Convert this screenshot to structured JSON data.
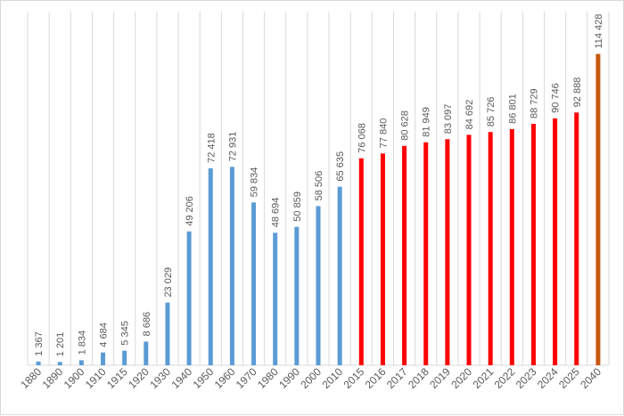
{
  "chart_data": {
    "type": "bar",
    "categories": [
      "1880",
      "1890",
      "1900",
      "1910",
      "1915",
      "1920",
      "1930",
      "1940",
      "1950",
      "1960",
      "1970",
      "1980",
      "1990",
      "2000",
      "2010",
      "2015",
      "2016",
      "2017",
      "2018",
      "2019",
      "2020",
      "2021",
      "2022",
      "2023",
      "2024",
      "2025",
      "2040"
    ],
    "values": [
      1367,
      1201,
      1834,
      4684,
      5345,
      8686,
      23029,
      49206,
      72418,
      72931,
      59834,
      48694,
      50859,
      58506,
      65635,
      76068,
      77840,
      80628,
      81949,
      83097,
      84692,
      85726,
      86801,
      88729,
      90746,
      92888,
      114428
    ],
    "data_labels": [
      "1 367",
      "1 201",
      "1 834",
      "4 684",
      "5 345",
      "8 686",
      "23 029",
      "49 206",
      "72 418",
      "72 931",
      "59 834",
      "48 694",
      "50 859",
      "58 506",
      "65 635",
      "76 068",
      "77 840",
      "80 628",
      "81 949",
      "83 097",
      "84 692",
      "85 726",
      "86 801",
      "88 729",
      "90 746",
      "92 888",
      "114 428"
    ],
    "bar_colors": [
      "#5b9bd5",
      "#5b9bd5",
      "#5b9bd5",
      "#5b9bd5",
      "#5b9bd5",
      "#5b9bd5",
      "#5b9bd5",
      "#5b9bd5",
      "#5b9bd5",
      "#5b9bd5",
      "#5b9bd5",
      "#5b9bd5",
      "#5b9bd5",
      "#5b9bd5",
      "#5b9bd5",
      "#ff0000",
      "#ff0000",
      "#ff0000",
      "#ff0000",
      "#ff0000",
      "#ff0000",
      "#ff0000",
      "#ff0000",
      "#ff0000",
      "#ff0000",
      "#ff0000",
      "#c55a11"
    ],
    "ylim": [
      0,
      130000
    ],
    "grid": "vertical",
    "title": "",
    "xlabel": "",
    "ylabel": ""
  }
}
